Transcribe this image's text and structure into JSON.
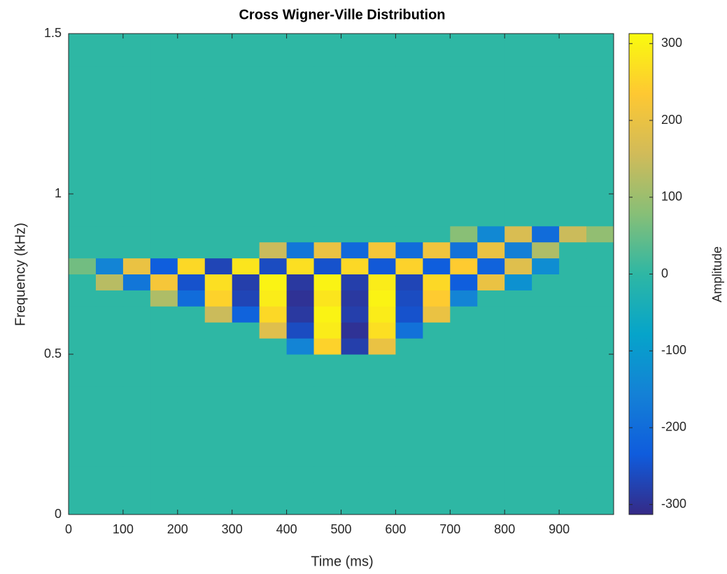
{
  "chart_data": {
    "type": "heatmap",
    "title": "Cross Wigner-Ville Distribution",
    "xlabel": "Time (ms)",
    "ylabel": "Frequency (kHz)",
    "colorbar_label": "Amplitude",
    "xlim": [
      0,
      1000
    ],
    "xticks": [
      0,
      100,
      200,
      300,
      400,
      500,
      600,
      700,
      800,
      900
    ],
    "ylim": [
      0,
      1.5
    ],
    "yticks": [
      0,
      0.5,
      1,
      1.5
    ],
    "clim": [
      -313,
      313
    ],
    "cticks": [
      -300,
      -200,
      -100,
      0,
      100,
      200,
      300
    ],
    "colormap": [
      "#352a87",
      "#0f5cdd",
      "#1481d6",
      "#06a4ca",
      "#2eb7a4",
      "#87bf77",
      "#d1bb59",
      "#fec832",
      "#f9fb0e"
    ],
    "xbins": [
      0,
      50,
      100,
      150,
      200,
      250,
      300,
      350,
      400,
      450,
      500,
      550,
      600,
      650,
      700,
      750,
      800,
      850,
      900,
      950,
      1000
    ],
    "ybins": [
      0,
      0.05,
      0.1,
      0.15,
      0.2,
      0.25,
      0.3,
      0.35,
      0.4,
      0.45,
      0.5,
      0.55,
      0.6,
      0.65,
      0.7,
      0.75,
      0.8,
      0.85,
      0.9,
      0.95,
      1,
      1.05,
      1.1,
      1.15,
      1.2,
      1.25,
      1.3,
      1.35,
      1.4,
      1.45,
      1.5
    ],
    "z": [
      [
        0,
        0,
        0,
        0,
        0,
        0,
        0,
        0,
        0,
        0,
        0,
        0,
        0,
        0,
        0,
        0,
        0,
        0,
        0,
        0
      ],
      [
        0,
        0,
        0,
        0,
        0,
        0,
        0,
        0,
        0,
        0,
        0,
        0,
        0,
        0,
        0,
        0,
        0,
        0,
        0,
        0
      ],
      [
        0,
        0,
        0,
        0,
        0,
        0,
        0,
        0,
        0,
        0,
        0,
        0,
        0,
        0,
        0,
        0,
        0,
        0,
        0,
        0
      ],
      [
        0,
        0,
        0,
        0,
        0,
        0,
        0,
        0,
        0,
        0,
        0,
        0,
        0,
        0,
        0,
        0,
        0,
        0,
        0,
        0
      ],
      [
        0,
        0,
        0,
        0,
        0,
        0,
        0,
        0,
        0,
        0,
        0,
        0,
        0,
        0,
        0,
        0,
        0,
        0,
        0,
        0
      ],
      [
        0,
        0,
        0,
        0,
        0,
        0,
        0,
        0,
        0,
        0,
        0,
        0,
        0,
        0,
        0,
        0,
        0,
        0,
        0,
        0
      ],
      [
        0,
        0,
        0,
        0,
        0,
        0,
        0,
        0,
        0,
        0,
        0,
        0,
        0,
        0,
        0,
        0,
        0,
        0,
        0,
        0
      ],
      [
        0,
        0,
        0,
        0,
        0,
        0,
        0,
        0,
        0,
        0,
        0,
        0,
        0,
        0,
        0,
        0,
        0,
        0,
        0,
        0
      ],
      [
        0,
        0,
        0,
        0,
        0,
        0,
        0,
        0,
        0,
        0,
        0,
        0,
        0,
        0,
        0,
        0,
        0,
        0,
        0,
        0
      ],
      [
        0,
        0,
        0,
        0,
        0,
        0,
        0,
        0,
        0,
        0,
        0,
        0,
        0,
        0,
        0,
        0,
        0,
        0,
        0,
        0
      ],
      [
        0,
        0,
        0,
        0,
        0,
        0,
        0,
        0,
        -150,
        250,
        -280,
        200,
        0,
        0,
        0,
        0,
        0,
        0,
        0,
        0
      ],
      [
        0,
        0,
        0,
        0,
        0,
        0,
        0,
        180,
        -260,
        290,
        -300,
        270,
        -190,
        0,
        0,
        0,
        0,
        0,
        0,
        0
      ],
      [
        0,
        0,
        0,
        0,
        0,
        150,
        -220,
        260,
        -290,
        300,
        -280,
        290,
        -250,
        200,
        0,
        0,
        0,
        0,
        0,
        0
      ],
      [
        0,
        0,
        0,
        120,
        -200,
        250,
        -270,
        290,
        -300,
        280,
        -290,
        300,
        -260,
        240,
        -150,
        0,
        0,
        0,
        0,
        0
      ],
      [
        0,
        130,
        -180,
        220,
        -250,
        270,
        -280,
        300,
        -290,
        300,
        -280,
        290,
        -270,
        260,
        -230,
        200,
        -120,
        0,
        0,
        0
      ],
      [
        60,
        -150,
        200,
        -230,
        260,
        -270,
        280,
        -260,
        270,
        -250,
        260,
        -240,
        250,
        -230,
        240,
        -220,
        180,
        -130,
        0,
        0
      ],
      [
        0,
        0,
        0,
        0,
        0,
        0,
        0,
        150,
        -180,
        200,
        -210,
        220,
        -200,
        210,
        -190,
        200,
        -160,
        120,
        0,
        0
      ],
      [
        0,
        0,
        0,
        0,
        0,
        0,
        0,
        0,
        0,
        0,
        0,
        0,
        0,
        0,
        80,
        -140,
        170,
        -200,
        150,
        90
      ],
      [
        0,
        0,
        0,
        0,
        0,
        0,
        0,
        0,
        0,
        0,
        0,
        0,
        0,
        0,
        0,
        0,
        0,
        0,
        0,
        0
      ],
      [
        0,
        0,
        0,
        0,
        0,
        0,
        0,
        0,
        0,
        0,
        0,
        0,
        0,
        0,
        0,
        0,
        0,
        0,
        0,
        0
      ],
      [
        0,
        0,
        0,
        0,
        0,
        0,
        0,
        0,
        0,
        0,
        0,
        0,
        0,
        0,
        0,
        0,
        0,
        0,
        0,
        0
      ],
      [
        0,
        0,
        0,
        0,
        0,
        0,
        0,
        0,
        0,
        0,
        0,
        0,
        0,
        0,
        0,
        0,
        0,
        0,
        0,
        0
      ],
      [
        0,
        0,
        0,
        0,
        0,
        0,
        0,
        0,
        0,
        0,
        0,
        0,
        0,
        0,
        0,
        0,
        0,
        0,
        0,
        0
      ],
      [
        0,
        0,
        0,
        0,
        0,
        0,
        0,
        0,
        0,
        0,
        0,
        0,
        0,
        0,
        0,
        0,
        0,
        0,
        0,
        0
      ],
      [
        0,
        0,
        0,
        0,
        0,
        0,
        0,
        0,
        0,
        0,
        0,
        0,
        0,
        0,
        0,
        0,
        0,
        0,
        0,
        0
      ],
      [
        0,
        0,
        0,
        0,
        0,
        0,
        0,
        0,
        0,
        0,
        0,
        0,
        0,
        0,
        0,
        0,
        0,
        0,
        0,
        0
      ],
      [
        0,
        0,
        0,
        0,
        0,
        0,
        0,
        0,
        0,
        0,
        0,
        0,
        0,
        0,
        0,
        0,
        0,
        0,
        0,
        0
      ],
      [
        0,
        0,
        0,
        0,
        0,
        0,
        0,
        0,
        0,
        0,
        0,
        0,
        0,
        0,
        0,
        0,
        0,
        0,
        0,
        0
      ],
      [
        0,
        0,
        0,
        0,
        0,
        0,
        0,
        0,
        0,
        0,
        0,
        0,
        0,
        0,
        0,
        0,
        0,
        0,
        0,
        0
      ],
      [
        0,
        0,
        0,
        0,
        0,
        0,
        0,
        0,
        0,
        0,
        0,
        0,
        0,
        0,
        0,
        0,
        0,
        0,
        0,
        0
      ]
    ]
  }
}
